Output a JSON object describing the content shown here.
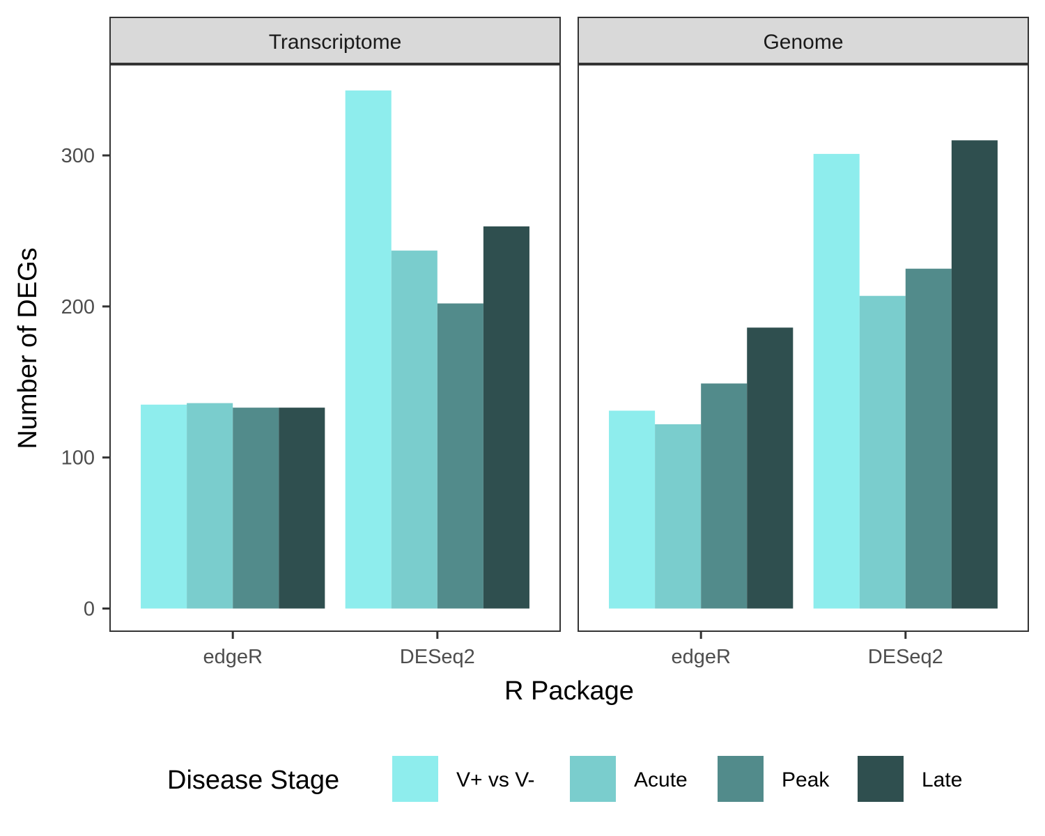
{
  "chart_data": {
    "type": "bar",
    "facets": [
      "Transcriptome",
      "Genome"
    ],
    "categories": [
      "edgeR",
      "DESeq2"
    ],
    "xlabel": "R Package",
    "ylabel": "Number of DEGs",
    "ylim": [
      -15,
      360
    ],
    "yticks": [
      0,
      100,
      200,
      300
    ],
    "grid": false,
    "legend": {
      "title": "Disease Stage",
      "position": "bottom",
      "entries": [
        "V+ vs V-",
        "Acute",
        "Peak",
        "Late"
      ]
    },
    "series": [
      {
        "name": "V+ vs V-",
        "color": "#8EEDED",
        "values": {
          "Transcriptome": [
            135,
            343
          ],
          "Genome": [
            131,
            301
          ]
        }
      },
      {
        "name": "Acute",
        "color": "#7ACDCD",
        "values": {
          "Transcriptome": [
            136,
            237
          ],
          "Genome": [
            122,
            207
          ]
        }
      },
      {
        "name": "Peak",
        "color": "#528B8B",
        "values": {
          "Transcriptome": [
            133,
            202
          ],
          "Genome": [
            149,
            225
          ]
        }
      },
      {
        "name": "Late",
        "color": "#2F4F4F",
        "values": {
          "Transcriptome": [
            133,
            253
          ],
          "Genome": [
            186,
            310
          ]
        }
      }
    ]
  }
}
